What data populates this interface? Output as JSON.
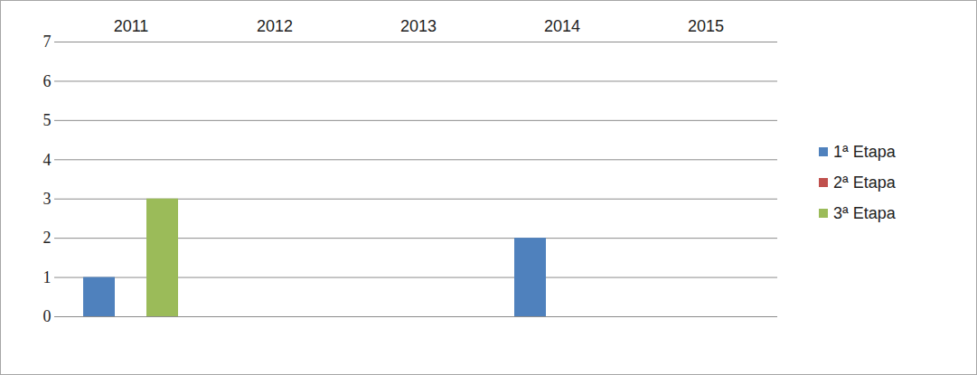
{
  "chart_data": {
    "type": "bar",
    "categories": [
      "2011",
      "2012",
      "2013",
      "2014",
      "2015"
    ],
    "series": [
      {
        "name": "1ª Etapa",
        "color": "#4f81bd",
        "values": [
          1,
          0,
          0,
          2,
          0
        ]
      },
      {
        "name": "2ª Etapa",
        "color": "#c0504d",
        "values": [
          0,
          0,
          0,
          0,
          0
        ]
      },
      {
        "name": "3ª Etapa",
        "color": "#9bbb59",
        "values": [
          3,
          0,
          0,
          0,
          0
        ]
      }
    ],
    "ylim": [
      0,
      7
    ],
    "yticks": [
      0,
      1,
      2,
      3,
      4,
      5,
      6,
      7
    ],
    "grid": true,
    "legend": "right"
  }
}
